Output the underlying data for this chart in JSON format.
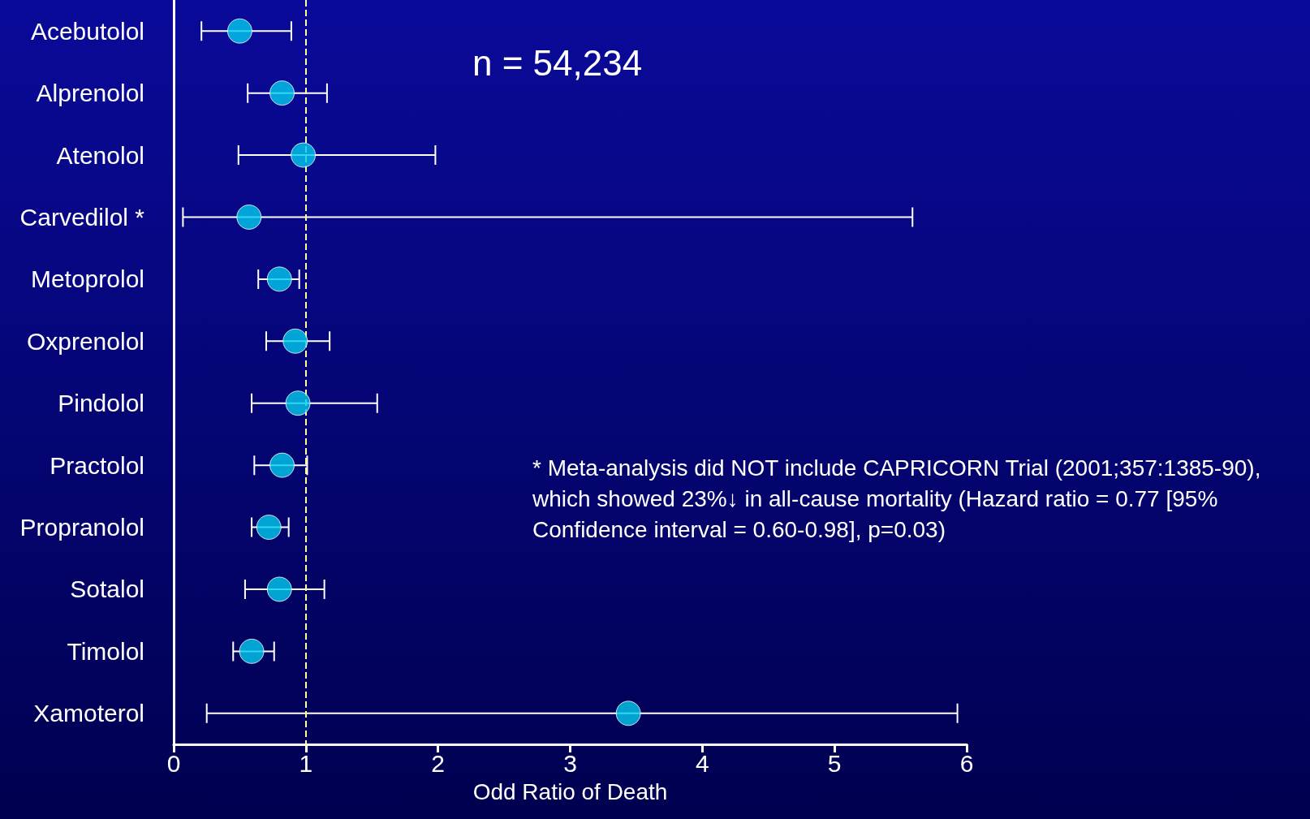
{
  "chart_data": {
    "type": "scatter",
    "orientation": "horizontal",
    "xlabel": "Odd Ratio of Death",
    "categories": [
      "Acebutolol",
      "Alprenolol",
      "Atenolol",
      "Carvedilol *",
      "Metoprolol",
      "Oxprenolol",
      "Pindolol",
      "Practolol",
      "Propranolol",
      "Sotalol",
      "Timolol",
      "Xamoterol"
    ],
    "values": [
      0.5,
      0.82,
      0.98,
      0.57,
      0.8,
      0.92,
      0.94,
      0.82,
      0.72,
      0.8,
      0.59,
      3.44
    ],
    "errors": [
      [
        0.21,
        0.89
      ],
      [
        0.56,
        1.16
      ],
      [
        0.49,
        1.98
      ],
      [
        0.07,
        5.59
      ],
      [
        0.64,
        0.95
      ],
      [
        0.7,
        1.18
      ],
      [
        0.59,
        1.54
      ],
      [
        0.61,
        1.01
      ],
      [
        0.59,
        0.87
      ],
      [
        0.54,
        1.14
      ],
      [
        0.45,
        0.76
      ],
      [
        0.25,
        5.93
      ]
    ],
    "color": "#00ccee",
    "marker": "circle",
    "grid": false,
    "xlim": [
      0,
      6
    ],
    "xticks": [
      0,
      1,
      2,
      3,
      4,
      5,
      6
    ],
    "ref_lines": [
      {
        "axis": "x",
        "value": 1,
        "color": "#ffff99",
        "line_style": "dashed"
      }
    ],
    "annotations": [
      "n = 54,234",
      "* Meta-analysis did NOT include CAPRICORN Trial (2001;357:1385-90), which showed 23%↓ in all-cause mortality (Hazard ratio = 0.77 [95% Confidence interval = 0.60-0.98], p=0.03)"
    ]
  }
}
